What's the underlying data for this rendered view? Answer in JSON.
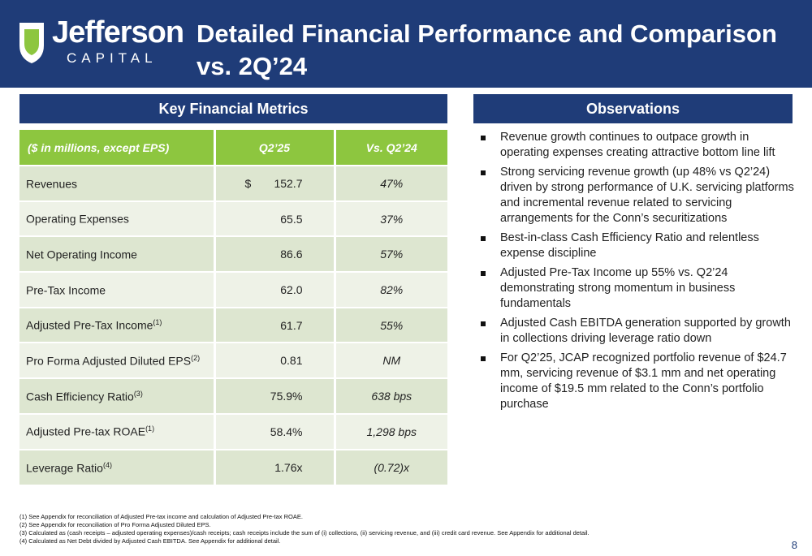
{
  "logo": {
    "word": "Jefferson",
    "sub": "CAPITAL"
  },
  "title": "Detailed Financial Performance and Comparison vs. 2Q’24",
  "left_section": "Key Financial Metrics",
  "right_section": "Observations",
  "table": {
    "headers": [
      "($ in millions, except EPS)",
      "Q2’25",
      "Vs. Q2’24"
    ],
    "rows": [
      {
        "label": "Revenues",
        "sup": "",
        "dollar": "$",
        "value": "152.7",
        "vs": "47%"
      },
      {
        "label": "Operating Expenses",
        "sup": "",
        "dollar": "",
        "value": "65.5",
        "vs": "37%"
      },
      {
        "label": "Net Operating Income",
        "sup": "",
        "dollar": "",
        "value": "86.6",
        "vs": "57%"
      },
      {
        "label": "Pre-Tax Income",
        "sup": "",
        "dollar": "",
        "value": "62.0",
        "vs": "82%"
      },
      {
        "label": "Adjusted Pre-Tax Income",
        "sup": "(1)",
        "dollar": "",
        "value": "61.7",
        "vs": "55%"
      },
      {
        "label": "Pro Forma Adjusted Diluted EPS",
        "sup": "(2)",
        "dollar": "",
        "value": "0.81",
        "vs": "NM"
      },
      {
        "label": "Cash Efficiency Ratio",
        "sup": "(3)",
        "dollar": "",
        "value": "75.9%",
        "vs": "638 bps"
      },
      {
        "label": "Adjusted Pre-tax ROAE",
        "sup": "(1)",
        "dollar": "",
        "value": "58.4%",
        "vs": "1,298 bps"
      },
      {
        "label": "Leverage Ratio",
        "sup": "(4)",
        "dollar": "",
        "value": "1.76x",
        "vs": "(0.72)x"
      }
    ]
  },
  "observations": [
    "Revenue growth continues to outpace growth in operating expenses creating attractive bottom line lift",
    "Strong servicing revenue growth (up 48% vs Q2’24) driven by strong performance of U.K. servicing platforms and incremental revenue related to servicing arrangements for the Conn’s securitizations",
    "Best-in-class Cash Efficiency Ratio and relentless expense discipline",
    "Adjusted Pre-Tax Income up 55% vs. Q2’24 demonstrating strong momentum in business fundamentals",
    "Adjusted Cash EBITDA generation supported by growth in collections driving leverage ratio down",
    "For Q2’25, JCAP recognized portfolio revenue of $24.7 mm, servicing revenue of $3.1 mm and net operating income of $19.5 mm related to the Conn’s portfolio purchase"
  ],
  "footnotes": [
    "(1) See Appendix for reconciliation of Adjusted Pre-tax income and calculation of Adjusted Pre-tax ROAE.",
    "(2) See Appendix for reconciliation of Pro Forma Adjusted Diluted EPS.",
    "(3) Calculated as (cash receipts – adjusted operating expenses)/cash receipts; cash receipts include the sum of (i) collections, (ii) servicing revenue, and (iii) credit card revenue. See Appendix for additional detail.",
    "(4) Calculated as Net Debt divided by Adjusted Cash EBITDA. See Appendix for additional detail."
  ],
  "page_number": "8",
  "colors": {
    "navy": "#1f3c78",
    "green": "#8dc63f"
  }
}
